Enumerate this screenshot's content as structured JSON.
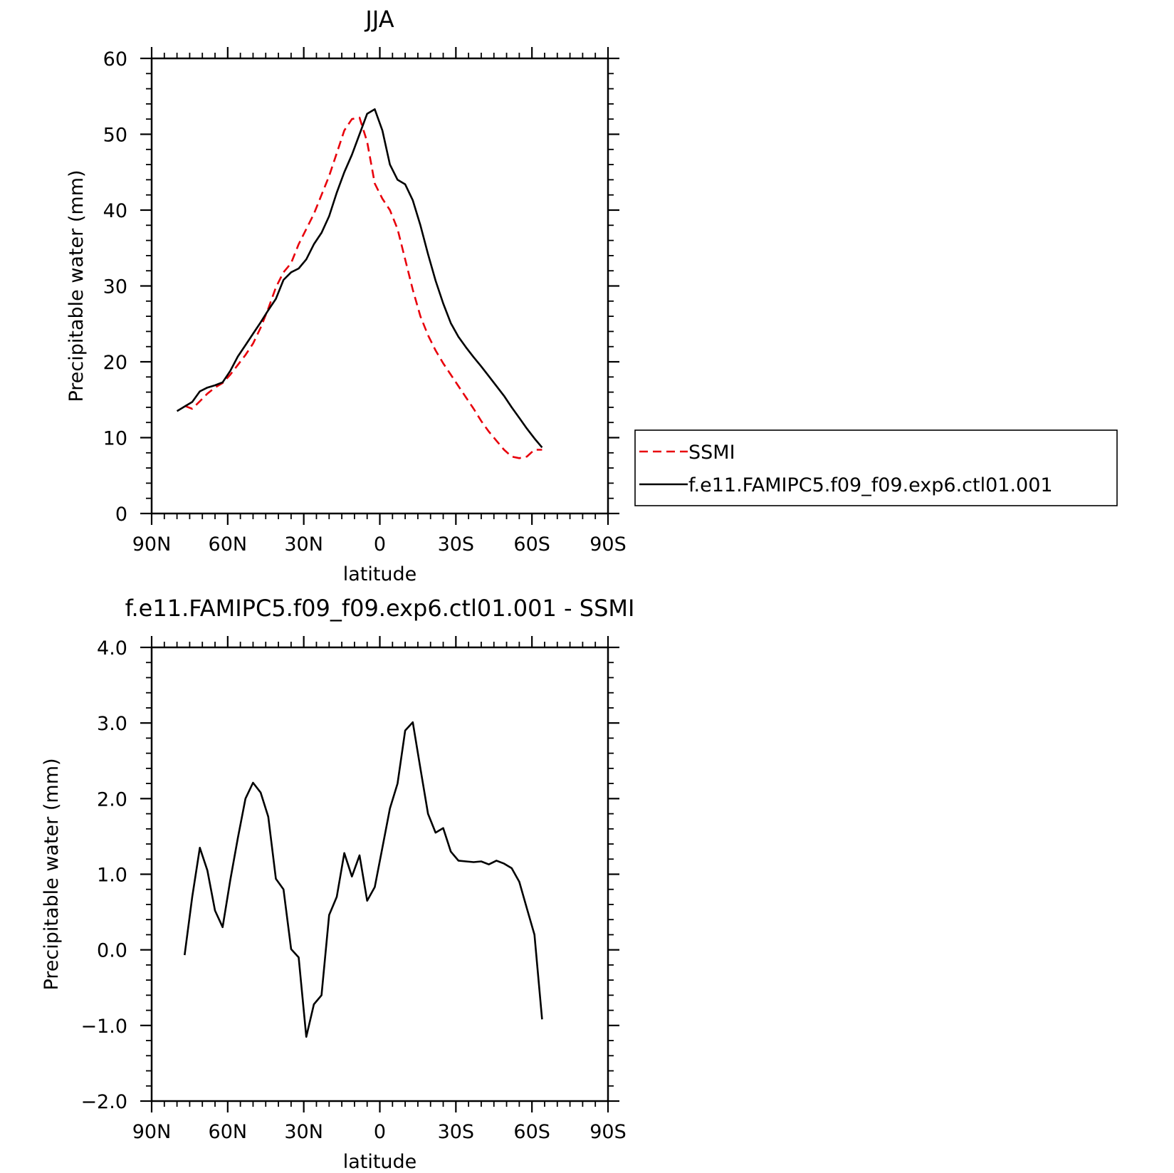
{
  "chart_data": [
    {
      "type": "line",
      "title": "JJA",
      "xlabel": "latitude",
      "ylabel": "Precipitable water (mm)",
      "xlim": [
        90,
        -90
      ],
      "ylim": [
        0,
        60
      ],
      "x_tick_values": [
        90,
        60,
        30,
        0,
        -30,
        -60,
        -90
      ],
      "x_tick_labels": [
        "90N",
        "60N",
        "30N",
        "0",
        "30S",
        "60S",
        "90S"
      ],
      "y_tick_values": [
        0,
        10,
        20,
        30,
        40,
        50,
        60
      ],
      "y_tick_labels": [
        "0",
        "10",
        "20",
        "30",
        "40",
        "50",
        "60"
      ],
      "legend_position": "right",
      "series": [
        {
          "name": "SSMI",
          "color": "#e8000b",
          "dash": "dashed",
          "x": [
            77,
            74,
            71,
            68,
            65,
            62,
            59,
            56,
            53,
            50,
            47,
            44,
            41,
            38,
            35,
            32,
            29,
            26,
            23,
            20,
            17,
            14,
            11,
            8,
            5,
            2,
            -1,
            -4,
            -7,
            -10,
            -13,
            -16,
            -19,
            -22,
            -25,
            -28,
            -31,
            -34,
            -37,
            -40,
            -43,
            -46,
            -49,
            -52,
            -55,
            -58,
            -61,
            -64
          ],
          "values": [
            14.2,
            13.8,
            14.8,
            15.8,
            16.6,
            17.2,
            18.3,
            19.6,
            20.9,
            22.4,
            24.5,
            27.0,
            29.8,
            31.8,
            33.0,
            35.5,
            37.5,
            39.5,
            42.0,
            44.5,
            47.5,
            50.5,
            52.0,
            52.2,
            49.0,
            43.5,
            41.5,
            40.0,
            37.5,
            33.5,
            29.5,
            26.0,
            23.5,
            21.5,
            19.8,
            18.3,
            16.8,
            15.3,
            13.8,
            12.2,
            10.8,
            9.6,
            8.4,
            7.5,
            7.3,
            7.5,
            8.4,
            8.4
          ]
        },
        {
          "name": "f.e11.FAMIPC5.f09_f09.exp6.ctl01.001",
          "color": "#000000",
          "dash": "solid",
          "x": [
            80,
            77,
            74,
            71,
            68,
            65,
            62,
            59,
            56,
            53,
            50,
            47,
            44,
            41,
            38,
            35,
            32,
            29,
            26,
            23,
            20,
            17,
            14,
            11,
            8,
            5,
            2,
            -1,
            -4,
            -7,
            -10,
            -13,
            -16,
            -19,
            -22,
            -25,
            -28,
            -31,
            -34,
            -37,
            -40,
            -43,
            -46,
            -49,
            -52,
            -55,
            -58,
            -61,
            -64
          ],
          "values": [
            13.5,
            14.1,
            14.7,
            16.1,
            16.6,
            16.9,
            17.3,
            18.8,
            20.7,
            22.2,
            23.7,
            25.2,
            26.8,
            28.3,
            30.8,
            31.8,
            32.3,
            33.5,
            35.5,
            37.0,
            39.2,
            42.3,
            45.0,
            47.3,
            50.0,
            52.7,
            53.3,
            50.5,
            46.0,
            44.0,
            43.4,
            41.3,
            38.0,
            34.2,
            30.7,
            27.7,
            25.1,
            23.3,
            21.9,
            20.6,
            19.4,
            18.1,
            16.8,
            15.5,
            14.0,
            12.6,
            11.2,
            9.9,
            8.7
          ]
        }
      ]
    },
    {
      "type": "line",
      "title": "f.e11.FAMIPC5.f09_f09.exp6.ctl01.001 - SSMI",
      "xlabel": "latitude",
      "ylabel": "Precipitable water (mm)",
      "xlim": [
        90,
        -90
      ],
      "ylim": [
        -2.0,
        4.0
      ],
      "x_tick_values": [
        90,
        60,
        30,
        0,
        -30,
        -60,
        -90
      ],
      "x_tick_labels": [
        "90N",
        "60N",
        "30N",
        "0",
        "30S",
        "60S",
        "90S"
      ],
      "y_tick_values": [
        4.0,
        3.0,
        2.0,
        1.0,
        0.0,
        -1.0,
        -2.0
      ],
      "y_tick_labels": [
        "4.0",
        "3.0",
        "2.0",
        "1.0",
        "0.0",
        "−1.0",
        "−2.0"
      ],
      "series": [
        {
          "color": "#000000",
          "dash": "solid",
          "x": [
            77,
            74,
            71,
            68,
            65,
            62,
            59,
            56,
            53,
            50,
            47,
            44,
            41,
            38,
            35,
            32,
            29,
            26,
            23,
            20,
            17,
            14,
            11,
            8,
            5,
            2,
            -1,
            -4,
            -7,
            -10,
            -13,
            -16,
            -19,
            -22,
            -25,
            -28,
            -31,
            -34,
            -37,
            -40,
            -43,
            -46,
            -49,
            -52,
            -55,
            -58,
            -61,
            -64
          ],
          "values": [
            -0.07,
            0.7,
            1.35,
            1.05,
            0.52,
            0.3,
            0.92,
            1.48,
            2.0,
            2.21,
            2.08,
            1.76,
            0.94,
            0.8,
            0.01,
            -0.1,
            -1.15,
            -0.72,
            -0.6,
            0.46,
            0.7,
            1.28,
            0.97,
            1.25,
            0.65,
            0.83,
            1.35,
            1.87,
            2.2,
            2.9,
            3.01,
            2.4,
            1.8,
            1.55,
            1.61,
            1.3,
            1.18,
            1.17,
            1.16,
            1.17,
            1.13,
            1.18,
            1.14,
            1.08,
            0.9,
            0.55,
            0.2,
            -0.92
          ]
        }
      ]
    }
  ]
}
